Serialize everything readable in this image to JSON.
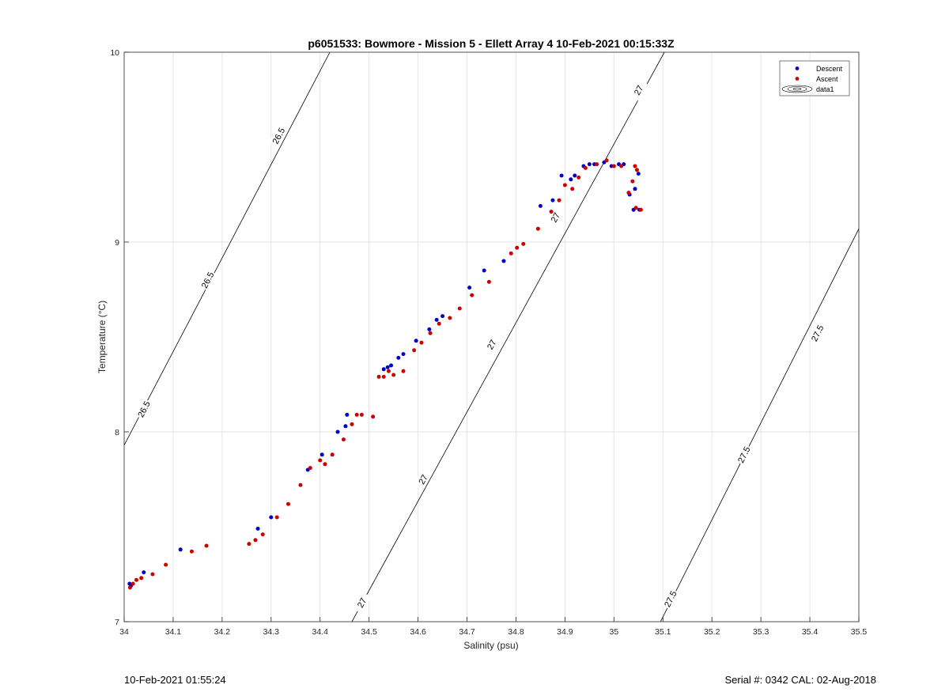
{
  "footer": {
    "timestamp": "10-Feb-2021 01:55:24",
    "serial_cal": "Serial #: 0342  CAL: 02-Aug-2018"
  },
  "chart_data": {
    "type": "scatter",
    "title": "p6051533: Bowmore - Mission 5 - Ellett Array 4 10-Feb-2021 00:15:33Z",
    "xlabel": "Salinity (psu)",
    "ylabel": "Temperature (°C)",
    "xlim": [
      34,
      35.5
    ],
    "ylim": [
      7,
      10
    ],
    "xticks": [
      "34",
      "34.1",
      "34.2",
      "34.3",
      "34.4",
      "34.5",
      "34.6",
      "34.7",
      "34.8",
      "34.9",
      "35",
      "35.1",
      "35.2",
      "35.3",
      "35.4",
      "35.5"
    ],
    "yticks": [
      "7",
      "8",
      "9",
      "10"
    ],
    "grid": true,
    "legend_position": "top-right",
    "legend": [
      "Descent",
      "Ascent",
      "data1"
    ],
    "colors": {
      "descent": "#0000cc",
      "ascent": "#cc0000",
      "axis": "#262626",
      "grid": "#e6e6e6",
      "isopycnal": "#000000"
    },
    "series": [
      {
        "name": "Descent",
        "points": [
          [
            34.011,
            7.2
          ],
          [
            34.014,
            7.19
          ],
          [
            34.04,
            7.26
          ],
          [
            34.115,
            7.38
          ],
          [
            34.273,
            7.49
          ],
          [
            34.3,
            7.55
          ],
          [
            34.375,
            7.8
          ],
          [
            34.404,
            7.88
          ],
          [
            34.436,
            8.0
          ],
          [
            34.452,
            8.03
          ],
          [
            34.455,
            8.09
          ],
          [
            34.53,
            8.33
          ],
          [
            34.538,
            8.34
          ],
          [
            34.545,
            8.35
          ],
          [
            34.56,
            8.39
          ],
          [
            34.57,
            8.41
          ],
          [
            34.596,
            8.48
          ],
          [
            34.623,
            8.54
          ],
          [
            34.638,
            8.59
          ],
          [
            34.65,
            8.61
          ],
          [
            34.705,
            8.76
          ],
          [
            34.735,
            8.85
          ],
          [
            34.775,
            8.9
          ],
          [
            34.85,
            9.19
          ],
          [
            34.875,
            9.22
          ],
          [
            34.893,
            9.35
          ],
          [
            34.912,
            9.33
          ],
          [
            34.92,
            9.35
          ],
          [
            34.938,
            9.4
          ],
          [
            34.95,
            9.41
          ],
          [
            34.96,
            9.41
          ],
          [
            34.98,
            9.42
          ],
          [
            34.995,
            9.4
          ],
          [
            35.01,
            9.41
          ],
          [
            35.02,
            9.41
          ],
          [
            35.032,
            9.25
          ],
          [
            35.04,
            9.17
          ],
          [
            35.043,
            9.28
          ],
          [
            35.05,
            9.36
          ],
          [
            35.052,
            9.17
          ]
        ]
      },
      {
        "name": "Ascent",
        "points": [
          [
            34.012,
            7.18
          ],
          [
            34.018,
            7.2
          ],
          [
            34.025,
            7.22
          ],
          [
            34.035,
            7.23
          ],
          [
            34.058,
            7.25
          ],
          [
            34.085,
            7.3
          ],
          [
            34.138,
            7.37
          ],
          [
            34.168,
            7.4
          ],
          [
            34.255,
            7.41
          ],
          [
            34.268,
            7.43
          ],
          [
            34.283,
            7.46
          ],
          [
            34.312,
            7.55
          ],
          [
            34.335,
            7.62
          ],
          [
            34.36,
            7.72
          ],
          [
            34.38,
            7.81
          ],
          [
            34.4,
            7.85
          ],
          [
            34.41,
            7.83
          ],
          [
            34.425,
            7.88
          ],
          [
            34.448,
            7.96
          ],
          [
            34.465,
            8.04
          ],
          [
            34.475,
            8.09
          ],
          [
            34.485,
            8.09
          ],
          [
            34.508,
            8.08
          ],
          [
            34.52,
            8.29
          ],
          [
            34.53,
            8.29
          ],
          [
            34.54,
            8.32
          ],
          [
            34.55,
            8.3
          ],
          [
            34.57,
            8.32
          ],
          [
            34.592,
            8.43
          ],
          [
            34.607,
            8.47
          ],
          [
            34.625,
            8.52
          ],
          [
            34.643,
            8.57
          ],
          [
            34.665,
            8.6
          ],
          [
            34.685,
            8.65
          ],
          [
            34.71,
            8.72
          ],
          [
            34.745,
            8.79
          ],
          [
            34.79,
            8.94
          ],
          [
            34.802,
            8.97
          ],
          [
            34.815,
            8.99
          ],
          [
            34.845,
            9.07
          ],
          [
            34.872,
            9.16
          ],
          [
            34.888,
            9.22
          ],
          [
            34.9,
            9.3
          ],
          [
            34.915,
            9.28
          ],
          [
            34.928,
            9.34
          ],
          [
            34.942,
            9.39
          ],
          [
            34.965,
            9.41
          ],
          [
            34.985,
            9.43
          ],
          [
            35.0,
            9.4
          ],
          [
            35.015,
            9.4
          ],
          [
            35.03,
            9.26
          ],
          [
            35.038,
            9.32
          ],
          [
            35.043,
            9.4
          ],
          [
            35.045,
            9.18
          ],
          [
            35.047,
            9.38
          ],
          [
            35.055,
            9.17
          ]
        ]
      }
    ],
    "isopycnals": [
      {
        "label": "26.5",
        "points": [
          [
            34.0,
            7.93
          ],
          [
            34.42,
            10.0
          ]
        ],
        "labels_at": [
          [
            34.04,
            8.12
          ],
          [
            34.17,
            8.8
          ],
          [
            34.315,
            9.56
          ]
        ]
      },
      {
        "label": "27",
        "points": [
          [
            34.465,
            7.0
          ],
          [
            35.103,
            10.0
          ]
        ],
        "labels_at": [
          [
            34.485,
            7.1
          ],
          [
            34.61,
            7.75
          ],
          [
            34.75,
            8.46
          ],
          [
            34.88,
            9.13
          ],
          [
            35.05,
            9.8
          ]
        ]
      },
      {
        "label": "27.5",
        "points": [
          [
            35.095,
            7.0
          ],
          [
            35.5,
            9.07
          ]
        ],
        "labels_at": [
          [
            35.115,
            7.12
          ],
          [
            35.265,
            7.88
          ],
          [
            35.415,
            8.52
          ]
        ]
      }
    ]
  }
}
